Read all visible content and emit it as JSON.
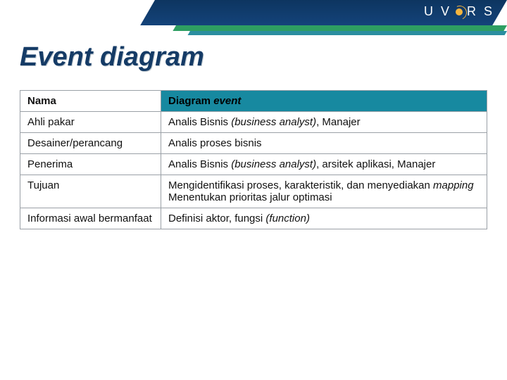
{
  "header": {
    "logo_left": "U V",
    "logo_right": "R S",
    "colors": {
      "navy": "#0d3560",
      "green": "#2e9e62",
      "teal": "#2b8ea0",
      "sun": "#f4b53f"
    }
  },
  "title": "Event diagram",
  "table": {
    "header_left": "Nama",
    "header_right_plain": "Diagram ",
    "header_right_italic": "event",
    "rows": {
      "r1": {
        "left": "Ahli pakar",
        "right_a": "Analis Bisnis ",
        "right_ital": "(business analyst)",
        "right_b": ", Manajer"
      },
      "r2": {
        "left": "Desainer/perancang",
        "right": "Analis proses bisnis"
      },
      "r3": {
        "left": "Penerima",
        "right_a": "Analis Bisnis ",
        "right_ital": "(business analyst)",
        "right_b": ", arsitek aplikasi, Manajer"
      },
      "r4": {
        "left": "Tujuan",
        "right_a": "Mengidentifikasi proses, karakteristik, dan menyediakan ",
        "right_ital": "mapping",
        "right_b": "",
        "right_line2": "Menentukan prioritas jalur optimasi"
      },
      "r5": {
        "left": "Informasi awal bermanfaat",
        "right_a": "Definisi aktor, fungsi ",
        "right_ital": "(function)",
        "right_b": ""
      }
    }
  }
}
